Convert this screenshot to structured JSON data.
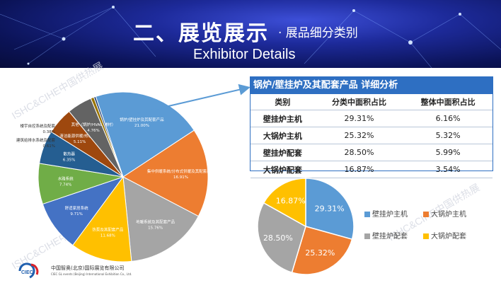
{
  "banner": {
    "title": "二、展览展示",
    "subtitle": "· 展品细分类别",
    "title_en": "Exhibitor Details"
  },
  "watermark": "ISHC&CIHE中国供热展",
  "company": {
    "name_cn": "中国智奥(北京)国际展览有限公司",
    "name_en": "CIEC GL events (Beijing) International Exhibition Co., Ltd.",
    "logo_text": "CIEC"
  },
  "detail_table": {
    "title": "锅炉/壁挂炉及其配套产品 详细分析",
    "headers": [
      "类别",
      "分类中面积占比",
      "整体中面积占比"
    ],
    "rows": [
      {
        "name": "壁挂炉主机",
        "share_in_class": "29.31%",
        "share_overall": "6.16%"
      },
      {
        "name": "大锅炉主机",
        "share_in_class": "25.32%",
        "share_overall": "5.32%"
      },
      {
        "name": "壁挂炉配套",
        "share_in_class": "28.50%",
        "share_overall": "5.99%"
      },
      {
        "name": "大锅炉配套",
        "share_in_class": "16.87%",
        "share_overall": "3.54%"
      }
    ]
  },
  "colors": {
    "banner": "#101a6e",
    "table_header": "#2e6fc2",
    "blue": "#5b9bd5",
    "orange": "#ed7d31",
    "gray": "#a5a5a5",
    "yellow": "#ffc000",
    "dark_blue": "#255e91",
    "green": "#70ad47",
    "deep_orange": "#9e480e"
  },
  "chart_data": [
    {
      "type": "pie",
      "slices": [
        {
          "name": "锅炉/壁挂炉及其配套产品",
          "value": 21.0,
          "label": "21.00%",
          "color": "#5b9bd5"
        },
        {
          "name": "集中供暖系统/分布式供暖及其配套产品",
          "value": 16.91,
          "label": "16.91%",
          "color": "#ed7d31"
        },
        {
          "name": "地暖系统及其配套产品",
          "value": 15.76,
          "label": "15.76%",
          "color": "#a5a5a5"
        },
        {
          "name": "热泵及其配套产品",
          "value": 11.68,
          "label": "11.68%",
          "color": "#ffc000"
        },
        {
          "name": "舒适家居系统",
          "value": 9.71,
          "label": "9.71%",
          "color": "#4472c4"
        },
        {
          "name": "水路系统",
          "value": 7.74,
          "label": "7.74%",
          "color": "#70ad47"
        },
        {
          "name": "散热器",
          "value": 6.35,
          "label": "6.35%",
          "color": "#255e91"
        },
        {
          "name": "清洁能源供暖/热水产品",
          "value": 5.11,
          "label": "5.11%",
          "color": "#9e480e"
        },
        {
          "name": "其他（锅炉/HVAC/辅材）",
          "value": 4.76,
          "label": "4.76%",
          "color": "#636363"
        },
        {
          "name": "建筑给排水系统及配套",
          "value": 0.61,
          "label": "0.61%",
          "color": "#997300"
        },
        {
          "name": "楼宇自控系统及配套",
          "value": 0.38,
          "label": "0.38%",
          "color": "#264478"
        }
      ]
    },
    {
      "type": "pie",
      "slices": [
        {
          "name": "壁挂炉主机",
          "value": 29.31,
          "label": "29.31%",
          "color": "#5b9bd5"
        },
        {
          "name": "大锅炉主机",
          "value": 25.32,
          "label": "25.32%",
          "color": "#ed7d31"
        },
        {
          "name": "壁挂炉配套",
          "value": 28.5,
          "label": "28.50%",
          "color": "#a5a5a5"
        },
        {
          "name": "大锅炉配套",
          "value": 16.87,
          "label": "16.87%",
          "color": "#ffc000"
        }
      ],
      "legend": [
        "壁挂炉主机",
        "大锅炉主机",
        "壁挂炉配套",
        "大锅炉配套"
      ],
      "legend_position": "right"
    }
  ]
}
